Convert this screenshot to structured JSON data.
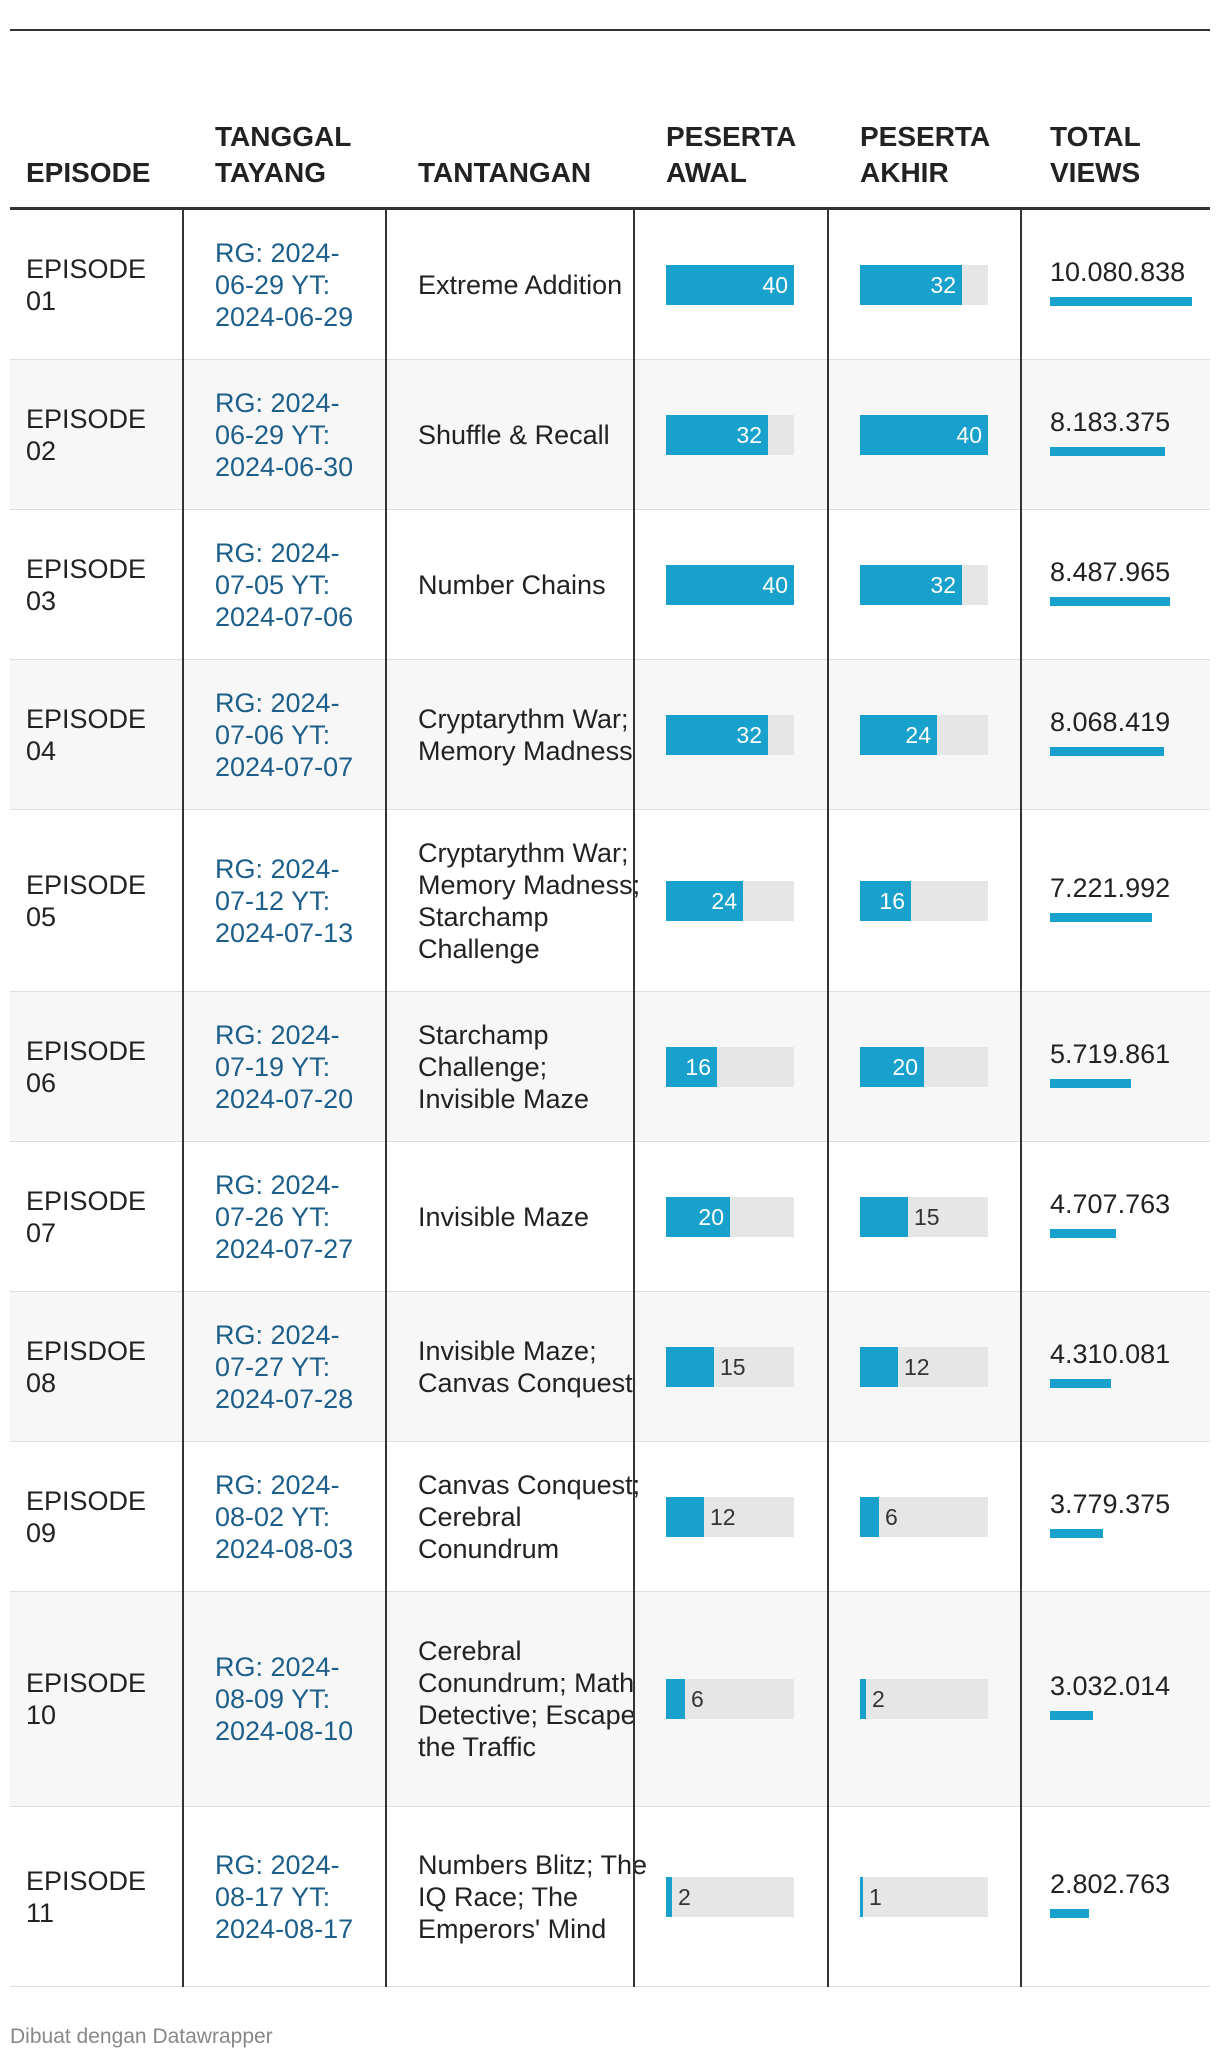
{
  "headers": {
    "episode": "EPISODE",
    "tanggal": "TANGGAL TAYANG",
    "tantangan": "TANTANGAN",
    "peserta_awal": "PESERTA AWAL",
    "peserta_akhir": "PESERTA AKHIR",
    "total_views": "TOTAL VIEWS"
  },
  "rows": [
    {
      "episode": "EPISODE 01",
      "tanggal": "RG: 2024-06-29 YT: 2024-06-29",
      "tantangan": "Extreme Addition",
      "awal": 40,
      "akhir": 32,
      "views": "10.080.838"
    },
    {
      "episode": "EPISODE 02",
      "tanggal": "RG: 2024-06-29 YT: 2024-06-30",
      "tantangan": "Shuffle & Recall",
      "awal": 32,
      "akhir": 40,
      "views": "8.183.375"
    },
    {
      "episode": "EPISODE 03",
      "tanggal": "RG: 2024-07-05 YT: 2024-07-06",
      "tantangan": "Number Chains",
      "awal": 40,
      "akhir": 32,
      "views": "8.487.965"
    },
    {
      "episode": "EPISODE 04",
      "tanggal": "RG: 2024-07-06 YT: 2024-07-07",
      "tantangan": "Cryptarythm War; Memory Madness",
      "awal": 32,
      "akhir": 24,
      "views": "8.068.419"
    },
    {
      "episode": "EPISODE 05",
      "tanggal": "RG: 2024-07-12 YT: 2024-07-13",
      "tantangan": "Cryptarythm War; Memory Madness; Starchamp Challenge",
      "awal": 24,
      "akhir": 16,
      "views": "7.221.992"
    },
    {
      "episode": "EPISODE 06",
      "tanggal": "RG: 2024-07-19 YT: 2024-07-20",
      "tantangan": "Starchamp Challenge; Invisible Maze",
      "awal": 16,
      "akhir": 20,
      "views": "5.719.861"
    },
    {
      "episode": "EPISODE 07",
      "tanggal": "RG: 2024-07-26 YT: 2024-07-27",
      "tantangan": "Invisible Maze",
      "awal": 20,
      "akhir": 15,
      "views": "4.707.763"
    },
    {
      "episode": "EPISDOE 08",
      "tanggal": "RG: 2024-07-27 YT: 2024-07-28",
      "tantangan": "Invisible Maze; Canvas Conquest",
      "awal": 15,
      "akhir": 12,
      "views": "4.310.081"
    },
    {
      "episode": "EPISODE 09",
      "tanggal": "RG: 2024-08-02 YT: 2024-08-03",
      "tantangan": "Canvas Conquest; Cerebral Conundrum",
      "awal": 12,
      "akhir": 6,
      "views": "3.779.375"
    },
    {
      "episode": "EPISODE 10",
      "tanggal": "RG: 2024-08-09 YT: 2024-08-10",
      "tantangan": "Cerebral Conundrum; Math Detective; Escape the Traffic",
      "awal": 6,
      "akhir": 2,
      "views": "3.032.014"
    },
    {
      "episode": "EPISODE 11",
      "tanggal": "RG: 2024-08-17 YT: 2024-08-17",
      "tantangan": "Numbers Blitz; The IQ Race; The Emperors' Mind",
      "awal": 2,
      "akhir": 1,
      "views": "2.802.763"
    }
  ],
  "chart_data": {
    "type": "table",
    "columns": [
      "EPISODE",
      "TANGGAL TAYANG",
      "TANTANGAN",
      "PESERTA AWAL",
      "PESERTA AKHIR",
      "TOTAL VIEWS"
    ],
    "peserta_max": 40,
    "views_max": 10080838
  },
  "footer": "Dibuat dengan Datawrapper",
  "colors": {
    "bar": "#18a1cd",
    "track": "#e6e6e6",
    "date_text": "#1d5f8a"
  }
}
